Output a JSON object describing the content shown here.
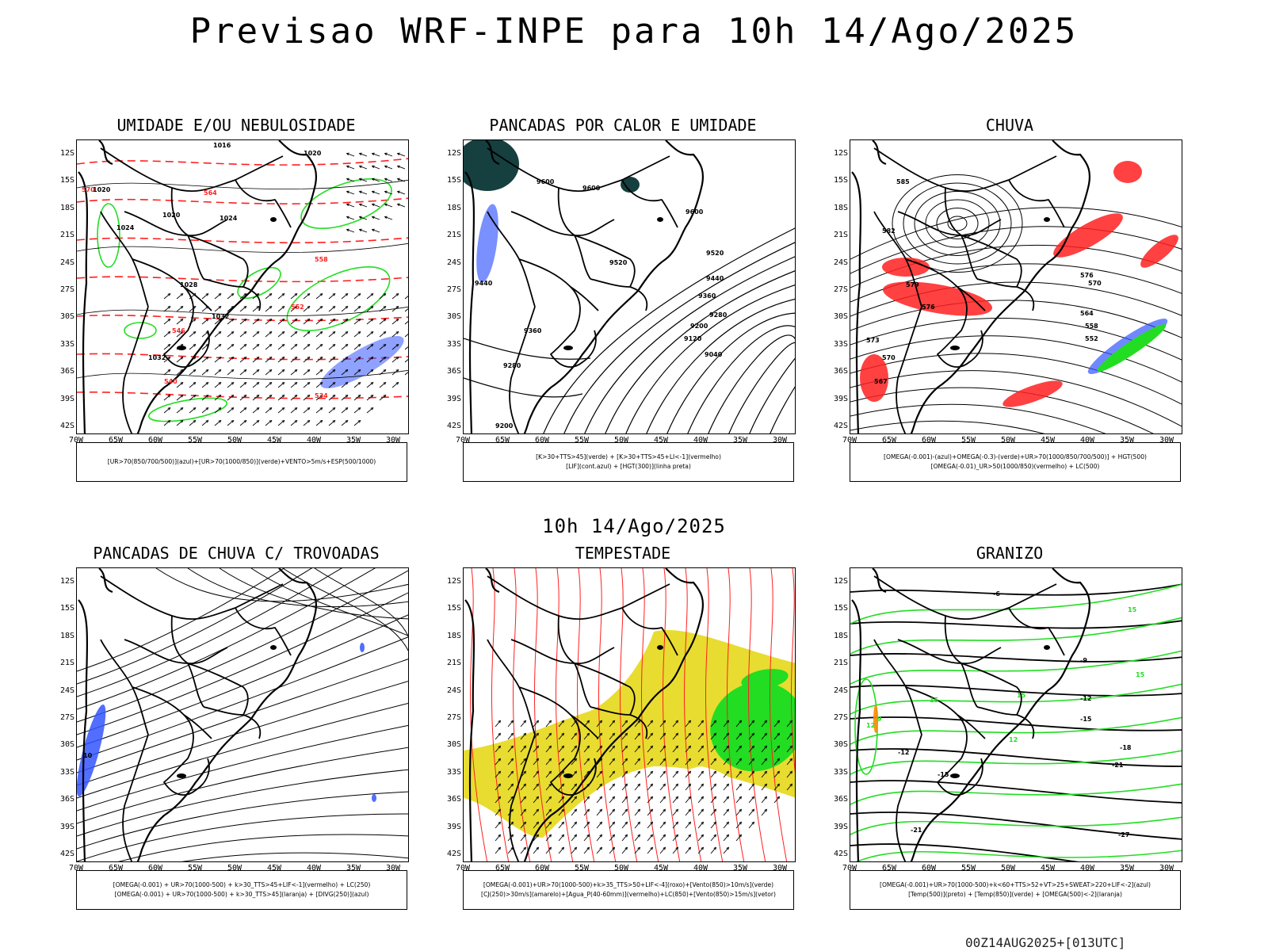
{
  "title": "Previsao WRF-INPE  para 10h 14/Ago/2025",
  "subtitle": "10h 14/Ago/2025",
  "footer": "00Z14AUG2025+[013UTC]",
  "axes": {
    "lat_labels": [
      "12S",
      "15S",
      "18S",
      "21S",
      "24S",
      "27S",
      "30S",
      "33S",
      "36S",
      "39S",
      "42S"
    ],
    "lon_labels": [
      "70W",
      "65W",
      "60W",
      "55W",
      "50W",
      "45W",
      "40W",
      "35W",
      "30W"
    ]
  },
  "colors": {
    "red": "#ff2020",
    "green": "#22dd22",
    "blue": "#3355ff",
    "dark_teal": "#163f3f",
    "yellow": "#e8dc30",
    "black": "#000000"
  },
  "panels": [
    {
      "title": "UMIDADE E/OU NEBULOSIDADE",
      "legend": [
        "[UR>70(850/700/500)](azul)+[UR>70(1000/850)](verde)+VENTO>5m/s+ESP(500/1000)"
      ],
      "contour_labels": [
        "1016",
        "1020",
        "1020",
        "1020",
        "1024",
        "1024",
        "1028",
        "1032",
        "1032",
        "570",
        "564",
        "558",
        "552",
        "546",
        "540",
        "534"
      ]
    },
    {
      "title": "PANCADAS POR CALOR E UMIDADE",
      "legend": [
        "[K>30+TTS>45](verde) + [K>30+TTS>45+LI<-1](vermelho)",
        "[LIF](cont.azul) + [HGT(300)](linha preta)"
      ],
      "contour_labels": [
        "9600",
        "9600",
        "9600",
        "9520",
        "9520",
        "9440",
        "9440",
        "9360",
        "9360",
        "9280",
        "9280",
        "9200",
        "9120",
        "9040",
        "9200"
      ]
    },
    {
      "title": "CHUVA",
      "legend": [
        "[OMEGA(-0.001)-(azul)+OMEGA(-0.3)-(verde)+UR>70(1000/850/700/500)] + HGT(500)",
        "[OMEGA(-0.01)_UR>50(1000/850)(vermelho) + LC(500)"
      ],
      "contour_labels": [
        "585",
        "582",
        "579",
        "576",
        "573",
        "570",
        "567",
        "576",
        "570",
        "564",
        "558",
        "552"
      ]
    },
    {
      "title": "PANCADAS DE CHUVA C/ TROVOADAS",
      "legend": [
        "[OMEGA(-0.001) + UR>70(1000-500) + k>30_TTS>45+LIF<-1](vermelho) + LC(250)",
        "[OMEGA(-0.001) + UR>70(1000-500) + k>30_TTS>45](laranja) + [DIVG(250)](azul)"
      ],
      "contour_labels": [
        "10"
      ]
    },
    {
      "title": "TEMPESTADE",
      "legend": [
        "[OMEGA(-0.001)+UR>70(1000-500)+k>35_TTS>50+LIF<-4](roxo)+[Vento(850)>10m/s](verde)",
        "[CJ(250)>30m/s](amarelo)+[Agua_P(40-60mm)](vermelho)+LC(850)+[Vento(850)>15m/s](vetor)"
      ],
      "contour_labels": []
    },
    {
      "title": "GRANIZO",
      "legend": [
        "[OMEGA(-0.001)+UR>70(1000-500)+k<60+TTS>52+VT>25+SWEAT>220+LIF<-2](azul)",
        "[Temp(500)](preto) + [Temp(850)](verde) + [OMEGA(500)<-2](laranja)"
      ],
      "contour_labels": [
        "-6",
        "-9",
        "-12",
        "-15",
        "-18",
        "-21",
        "-12",
        "-15",
        "-21",
        "-27",
        "15",
        "15",
        "15",
        "12",
        "9",
        "12",
        "15"
      ]
    }
  ]
}
